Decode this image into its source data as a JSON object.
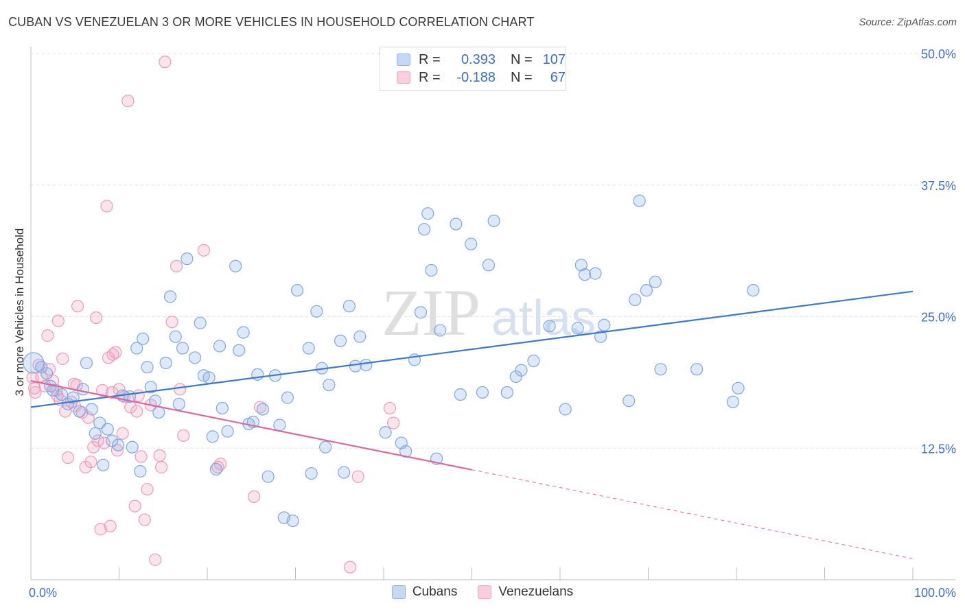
{
  "title": "CUBAN VS VENEZUELAN 3 OR MORE VEHICLES IN HOUSEHOLD CORRELATION CHART",
  "source": "Source: ZipAtlas.com",
  "watermark": {
    "zip": "ZIP",
    "atlas": "atlas"
  },
  "legend_top": [
    {
      "r_label": "R =",
      "r_value": "0.393",
      "n_label": "N =",
      "n_value": "107",
      "color": "#8fb3e8"
    },
    {
      "r_label": "R =",
      "r_value": "-0.188",
      "n_label": "N =",
      "n_value": "67",
      "color": "#f2a3bf"
    }
  ],
  "legend_bottom": [
    {
      "label": "Cubans",
      "color": "#8fb3e8"
    },
    {
      "label": "Venezuelans",
      "color": "#f2a3bf"
    }
  ],
  "colors": {
    "cuban": "#3a78d4",
    "venezuelan": "#e0669a",
    "tick_label": "#3b6fc7"
  },
  "chart_data": {
    "type": "scatter",
    "title": "CUBAN VS VENEZUELAN 3 OR MORE VEHICLES IN HOUSEHOLD CORRELATION CHART",
    "xlabel": "",
    "ylabel": "3 or more Vehicles in Household",
    "xlim": [
      0,
      100
    ],
    "ylim": [
      0,
      50
    ],
    "x_tick_labels": [
      {
        "value": 0,
        "label": "0.0%"
      },
      {
        "value": 100,
        "label": "100.0%"
      }
    ],
    "y_tick_labels": [
      {
        "value": 12.5,
        "label": "12.5%"
      },
      {
        "value": 25,
        "label": "25.0%"
      },
      {
        "value": 37.5,
        "label": "37.5%"
      },
      {
        "value": 50,
        "label": "50.0%"
      }
    ],
    "grid": true,
    "legend_position": "top-center",
    "series": [
      {
        "name": "Cubans",
        "r": 0.393,
        "n": 107,
        "trend": {
          "x0": 0,
          "y0": 16.4,
          "x1": 100,
          "y1": 27.4,
          "dashed_from": null
        },
        "points": [
          [
            0.3,
            20.6
          ],
          [
            1.2,
            20.2
          ],
          [
            1.8,
            19.6
          ],
          [
            2.2,
            18.4
          ],
          [
            2.5,
            18.0
          ],
          [
            3.5,
            17.6
          ],
          [
            4.2,
            16.7
          ],
          [
            4.8,
            17.3
          ],
          [
            5.5,
            16.0
          ],
          [
            5.9,
            18.1
          ],
          [
            6.3,
            20.6
          ],
          [
            6.9,
            16.2
          ],
          [
            7.3,
            13.9
          ],
          [
            7.8,
            14.9
          ],
          [
            8.2,
            10.9
          ],
          [
            8.7,
            14.3
          ],
          [
            9.2,
            13.2
          ],
          [
            9.9,
            12.8
          ],
          [
            10.4,
            17.5
          ],
          [
            11.2,
            17.4
          ],
          [
            11.5,
            12.6
          ],
          [
            12.0,
            22.0
          ],
          [
            12.4,
            10.3
          ],
          [
            12.7,
            22.9
          ],
          [
            13.2,
            20.2
          ],
          [
            13.6,
            18.3
          ],
          [
            14.1,
            17.0
          ],
          [
            14.5,
            15.9
          ],
          [
            15.3,
            20.6
          ],
          [
            15.8,
            26.9
          ],
          [
            16.4,
            23.1
          ],
          [
            16.8,
            16.7
          ],
          [
            17.2,
            22.0
          ],
          [
            17.7,
            30.5
          ],
          [
            18.6,
            21.1
          ],
          [
            19.2,
            24.4
          ],
          [
            19.6,
            19.4
          ],
          [
            20.2,
            19.2
          ],
          [
            20.6,
            13.6
          ],
          [
            21.0,
            10.5
          ],
          [
            21.4,
            22.2
          ],
          [
            21.7,
            16.3
          ],
          [
            22.3,
            14.1
          ],
          [
            23.2,
            29.8
          ],
          [
            23.6,
            21.8
          ],
          [
            24.1,
            23.5
          ],
          [
            24.7,
            14.8
          ],
          [
            25.2,
            15.0
          ],
          [
            25.7,
            19.5
          ],
          [
            26.3,
            16.2
          ],
          [
            26.9,
            9.8
          ],
          [
            27.7,
            19.4
          ],
          [
            28.2,
            14.7
          ],
          [
            28.7,
            5.9
          ],
          [
            29.1,
            17.3
          ],
          [
            29.7,
            5.6
          ],
          [
            30.2,
            27.5
          ],
          [
            31.5,
            22.0
          ],
          [
            31.8,
            10.1
          ],
          [
            32.4,
            25.5
          ],
          [
            33.0,
            20.1
          ],
          [
            33.4,
            12.6
          ],
          [
            33.8,
            18.5
          ],
          [
            35.1,
            22.7
          ],
          [
            35.5,
            10.2
          ],
          [
            36.1,
            26.0
          ],
          [
            36.8,
            20.3
          ],
          [
            37.3,
            23.1
          ],
          [
            38.0,
            20.4
          ],
          [
            40.2,
            14.0
          ],
          [
            42.0,
            13.0
          ],
          [
            42.5,
            12.2
          ],
          [
            43.5,
            20.9
          ],
          [
            44.2,
            25.4
          ],
          [
            44.6,
            33.3
          ],
          [
            45.0,
            34.8
          ],
          [
            45.4,
            29.4
          ],
          [
            46.0,
            11.5
          ],
          [
            46.4,
            23.7
          ],
          [
            48.2,
            33.8
          ],
          [
            48.7,
            17.6
          ],
          [
            49.9,
            31.9
          ],
          [
            51.2,
            17.8
          ],
          [
            51.9,
            29.9
          ],
          [
            52.5,
            34.1
          ],
          [
            54.0,
            17.8
          ],
          [
            55.0,
            19.3
          ],
          [
            55.6,
            19.9
          ],
          [
            57.0,
            20.8
          ],
          [
            58.8,
            24.1
          ],
          [
            60.6,
            16.2
          ],
          [
            62.0,
            23.9
          ],
          [
            62.4,
            29.9
          ],
          [
            62.8,
            29.0
          ],
          [
            64.0,
            29.1
          ],
          [
            64.6,
            23.1
          ],
          [
            65.0,
            24.2
          ],
          [
            67.8,
            17.0
          ],
          [
            68.5,
            26.6
          ],
          [
            69.0,
            36.0
          ],
          [
            69.8,
            27.5
          ],
          [
            70.8,
            28.3
          ],
          [
            71.4,
            20.0
          ],
          [
            75.5,
            20.0
          ],
          [
            79.6,
            16.9
          ],
          [
            80.2,
            18.2
          ],
          [
            81.9,
            27.5
          ]
        ]
      },
      {
        "name": "Venezuelans",
        "r": -0.188,
        "n": 67,
        "trend": {
          "x0": 0,
          "y0": 18.9,
          "x1": 100,
          "y1": 2.0,
          "dashed_from": 50
        },
        "points": [
          [
            0.2,
            19.2
          ],
          [
            0.4,
            18.2
          ],
          [
            0.5,
            17.8
          ],
          [
            0.9,
            20.4
          ],
          [
            1.2,
            19.3
          ],
          [
            1.6,
            18.4
          ],
          [
            1.9,
            23.2
          ],
          [
            2.1,
            20.0
          ],
          [
            2.5,
            18.9
          ],
          [
            2.9,
            18.0
          ],
          [
            3.1,
            24.6
          ],
          [
            3.3,
            17.1
          ],
          [
            3.6,
            21.0
          ],
          [
            3.9,
            16.0
          ],
          [
            4.2,
            11.6
          ],
          [
            4.6,
            16.9
          ],
          [
            4.9,
            18.6
          ],
          [
            5.2,
            18.5
          ],
          [
            5.3,
            26.0
          ],
          [
            5.8,
            15.9
          ],
          [
            6.2,
            10.7
          ],
          [
            6.5,
            15.4
          ],
          [
            6.8,
            11.2
          ],
          [
            7.1,
            12.6
          ],
          [
            7.4,
            24.9
          ],
          [
            7.6,
            13.2
          ],
          [
            7.9,
            4.8
          ],
          [
            8.1,
            18.0
          ],
          [
            8.3,
            13.0
          ],
          [
            8.6,
            35.5
          ],
          [
            8.8,
            21.1
          ],
          [
            9.0,
            5.1
          ],
          [
            9.3,
            21.4
          ],
          [
            9.6,
            21.6
          ],
          [
            9.8,
            12.3
          ],
          [
            10.0,
            18.1
          ],
          [
            10.4,
            13.9
          ],
          [
            10.6,
            17.4
          ],
          [
            11.0,
            45.5
          ],
          [
            11.3,
            16.4
          ],
          [
            11.8,
            7.0
          ],
          [
            12.2,
            17.5
          ],
          [
            12.5,
            11.7
          ],
          [
            12.9,
            5.7
          ],
          [
            13.2,
            8.6
          ],
          [
            13.6,
            16.6
          ],
          [
            14.1,
            1.9
          ],
          [
            14.6,
            11.8
          ],
          [
            14.8,
            10.7
          ],
          [
            15.2,
            49.2
          ],
          [
            16.0,
            24.5
          ],
          [
            16.5,
            29.8
          ],
          [
            16.9,
            18.1
          ],
          [
            17.3,
            13.7
          ],
          [
            19.6,
            31.3
          ],
          [
            21.2,
            10.7
          ],
          [
            21.5,
            11.0
          ],
          [
            25.3,
            7.9
          ],
          [
            26.0,
            16.4
          ],
          [
            40.7,
            16.3
          ],
          [
            41.1,
            14.9
          ],
          [
            36.2,
            1.2
          ],
          [
            37.1,
            9.8
          ],
          [
            9.2,
            17.8
          ],
          [
            12.0,
            16.0
          ],
          [
            5.0,
            16.5
          ],
          [
            3.0,
            17.5
          ]
        ]
      }
    ]
  }
}
